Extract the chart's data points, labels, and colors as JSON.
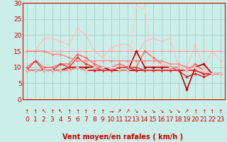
{
  "title": "",
  "xlabel": "Vent moyen/en rafales ( km/h )",
  "ylabel": "",
  "xlim": [
    -0.5,
    23.5
  ],
  "ylim": [
    0,
    30
  ],
  "yticks": [
    0,
    5,
    10,
    15,
    20,
    25,
    30
  ],
  "xticks": [
    0,
    1,
    2,
    3,
    4,
    5,
    6,
    7,
    8,
    9,
    10,
    11,
    12,
    13,
    14,
    15,
    16,
    17,
    18,
    19,
    20,
    21,
    22,
    23
  ],
  "bg_color": "#cceee8",
  "grid_color": "#aad4ce",
  "lines": [
    {
      "x": [
        0,
        1,
        2,
        3,
        4,
        5,
        6,
        7,
        8,
        9,
        10,
        11,
        12,
        13,
        14,
        15,
        16,
        17,
        18,
        19,
        20,
        21,
        22,
        23
      ],
      "y": [
        15,
        15,
        15,
        15,
        15,
        15,
        15,
        15,
        15,
        15,
        15,
        15,
        15,
        15,
        15,
        15,
        15,
        15,
        15,
        15,
        15,
        15,
        15,
        15
      ],
      "color": "#ffaaaa",
      "lw": 0.9,
      "marker": "D",
      "ms": 2.0
    },
    {
      "x": [
        0,
        1,
        2,
        3,
        4,
        5,
        6,
        7,
        8,
        9,
        10,
        11,
        12,
        13,
        14,
        15,
        16,
        17,
        18,
        19,
        20,
        21,
        22,
        23
      ],
      "y": [
        15,
        15,
        19,
        19,
        18,
        17,
        22,
        20,
        15,
        13,
        16,
        17,
        17,
        14,
        18,
        19,
        18,
        19,
        10,
        10,
        17,
        10,
        15,
        12
      ],
      "color": "#ffbbbb",
      "lw": 0.8,
      "marker": "D",
      "ms": 2.0
    },
    {
      "x": [
        0,
        1,
        2,
        3,
        4,
        5,
        6,
        7,
        8,
        9,
        10,
        11,
        12,
        13,
        14,
        15,
        16,
        17,
        18,
        19,
        20,
        21,
        22,
        23
      ],
      "y": [
        10,
        12,
        10,
        10,
        11,
        11,
        14,
        13,
        11,
        10,
        10,
        11,
        10,
        10,
        15,
        13,
        11,
        10,
        9,
        9,
        11,
        9,
        8,
        8
      ],
      "color": "#ff6666",
      "lw": 1.0,
      "marker": "D",
      "ms": 2.0
    },
    {
      "x": [
        0,
        1,
        2,
        3,
        4,
        5,
        6,
        7,
        8,
        9,
        10,
        11,
        12,
        13,
        14,
        15,
        16,
        17,
        18,
        19,
        20,
        21,
        22,
        23
      ],
      "y": [
        9,
        9,
        9,
        9,
        9,
        9,
        10,
        9,
        9,
        9,
        9,
        9,
        9,
        9,
        9,
        9,
        9,
        9,
        9,
        9,
        9,
        8,
        8,
        8
      ],
      "color": "#cc0000",
      "lw": 1.2,
      "marker": "D",
      "ms": 2.0
    },
    {
      "x": [
        0,
        1,
        2,
        3,
        4,
        5,
        6,
        7,
        8,
        9,
        10,
        11,
        12,
        13,
        14,
        15,
        16,
        17,
        18,
        19,
        20,
        21,
        22,
        23
      ],
      "y": [
        9,
        9,
        9,
        9,
        9,
        9,
        10,
        9,
        9,
        9,
        9,
        10,
        10,
        9,
        9,
        9,
        9,
        9,
        9,
        7,
        8,
        7,
        8,
        8
      ],
      "color": "#dd2222",
      "lw": 1.0,
      "marker": "D",
      "ms": 2.0
    },
    {
      "x": [
        0,
        1,
        2,
        3,
        4,
        5,
        6,
        7,
        8,
        9,
        10,
        11,
        12,
        13,
        14,
        15,
        16,
        17,
        18,
        19,
        20,
        21,
        22,
        23
      ],
      "y": [
        9,
        9,
        9,
        9,
        9,
        10,
        10,
        10,
        10,
        10,
        9,
        9,
        9,
        15,
        10,
        10,
        10,
        10,
        10,
        3,
        10,
        11,
        8,
        8
      ],
      "color": "#bb0000",
      "lw": 1.2,
      "marker": "D",
      "ms": 2.0
    },
    {
      "x": [
        0,
        1,
        2,
        3,
        4,
        5,
        6,
        7,
        8,
        9,
        10,
        11,
        12,
        13,
        14,
        15,
        16,
        17,
        18,
        19,
        20,
        21,
        22,
        23
      ],
      "y": [
        9,
        12,
        9,
        9,
        11,
        10,
        13,
        11,
        10,
        9,
        9,
        10,
        10,
        10,
        9,
        9,
        9,
        9,
        9,
        9,
        9,
        8,
        8,
        8
      ],
      "color": "#ff3333",
      "lw": 1.0,
      "marker": "D",
      "ms": 2.0
    },
    {
      "x": [
        0,
        1,
        2,
        3,
        4,
        5,
        6,
        7,
        8,
        9,
        10,
        11,
        12,
        13,
        14,
        15,
        16,
        17,
        18,
        19,
        20,
        21,
        22,
        23
      ],
      "y": [
        15,
        15,
        15,
        14,
        14,
        13,
        12,
        12,
        12,
        12,
        12,
        12,
        12,
        12,
        12,
        12,
        12,
        11,
        11,
        10,
        10,
        9,
        8,
        8
      ],
      "color": "#ff8888",
      "lw": 1.0,
      "marker": "D",
      "ms": 1.8
    },
    {
      "x": [
        0,
        1,
        2,
        3,
        4,
        5,
        6,
        7,
        8,
        9,
        10,
        11,
        12,
        13,
        14,
        15,
        16,
        17,
        18,
        19,
        20,
        21,
        22,
        23
      ],
      "y": [
        9,
        9,
        9,
        9,
        9,
        9,
        10,
        9,
        10,
        10,
        10,
        9,
        9,
        29,
        28,
        11,
        11,
        10,
        10,
        9,
        10,
        9,
        8,
        8
      ],
      "color": "#ffcccc",
      "lw": 0.8,
      "marker": "D",
      "ms": 2.0
    }
  ],
  "arrow_chars": [
    "↑",
    "↑",
    "↖",
    "↑",
    "↖",
    "↑",
    "↑",
    "↑",
    "↑",
    "↑",
    "→",
    "↗",
    "↗",
    "↘",
    "↘",
    "↘",
    "↘",
    "↘",
    "↘",
    "↗",
    "↑",
    "↑",
    "↑",
    "↑"
  ],
  "text_color": "#cc0000",
  "font_size": 6.5
}
